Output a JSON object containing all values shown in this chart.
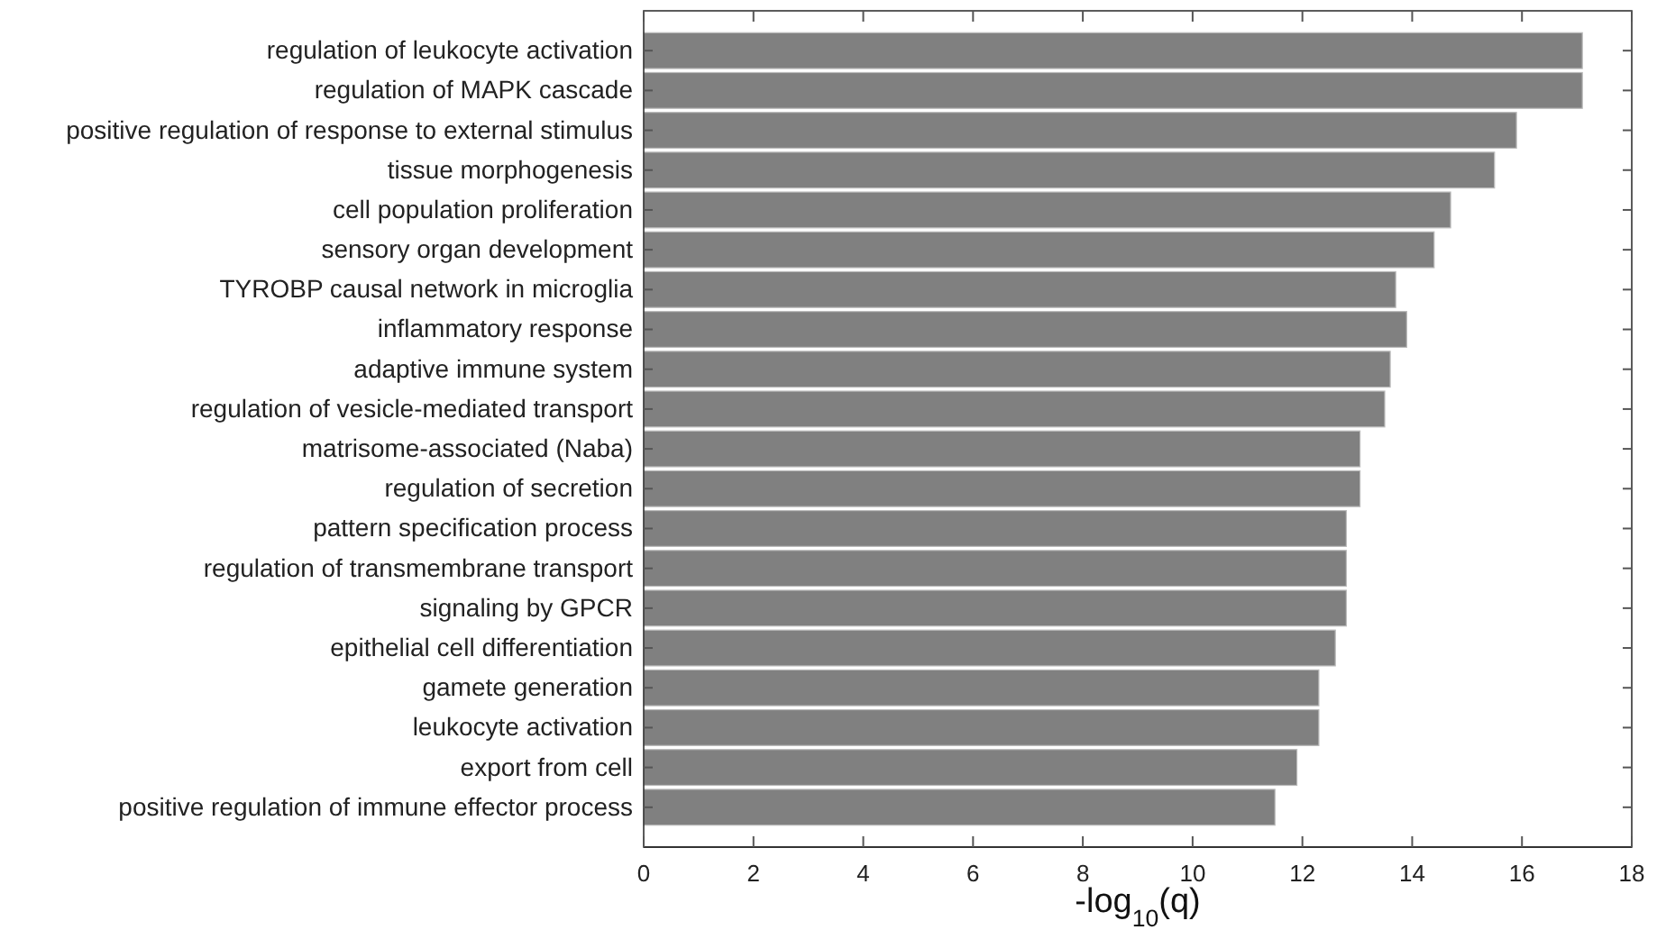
{
  "chart_data": {
    "type": "bar",
    "orientation": "horizontal",
    "xlabel": "-log$_{10}$(q)",
    "categories": [
      "regulation of leukocyte activation",
      "regulation of MAPK cascade",
      "positive regulation of response to external stimulus",
      "tissue morphogenesis",
      "cell population proliferation",
      "sensory organ development",
      "TYROBP causal network in microglia",
      "inflammatory response",
      "adaptive immune system",
      "regulation of vesicle-mediated transport",
      "matrisome-associated (Naba)",
      "regulation of secretion",
      "pattern specification process",
      "regulation of transmembrane transport",
      "signaling by GPCR",
      "epithelial cell differentiation",
      "gamete generation",
      "leukocyte activation",
      "export from cell",
      "positive regulation of immune effector process"
    ],
    "values": [
      17.1,
      17.1,
      15.9,
      15.5,
      14.7,
      14.4,
      13.7,
      13.9,
      13.6,
      13.5,
      13.05,
      13.05,
      12.8,
      12.8,
      12.8,
      12.6,
      12.3,
      12.3,
      11.9,
      11.5
    ],
    "color": "#808080",
    "xlim": [
      0,
      18
    ],
    "xticks": [
      0,
      2,
      4,
      6,
      8,
      10,
      12,
      14,
      16,
      18
    ],
    "grid": false
  }
}
